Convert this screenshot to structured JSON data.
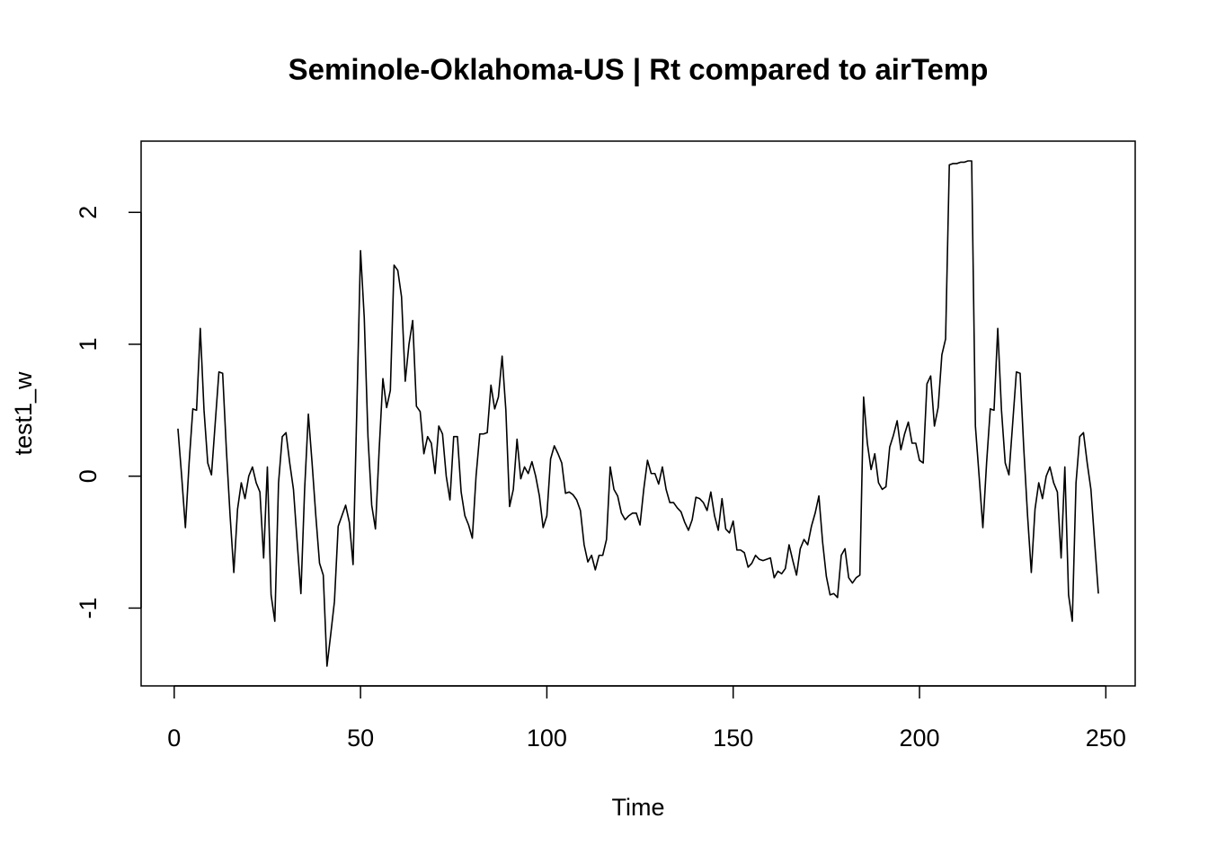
{
  "chart_data": {
    "type": "line",
    "title": "Seminole-Oklahoma-US | Rt compared to airTemp",
    "xlabel": "Time",
    "ylabel": "test1_w",
    "x": [
      1,
      2,
      3,
      4,
      5,
      6,
      7,
      8,
      9,
      10,
      11,
      12,
      13,
      14,
      15,
      16,
      17,
      18,
      19,
      20,
      21,
      22,
      23,
      24,
      25,
      26,
      27,
      28,
      29,
      30,
      31,
      32,
      33,
      34,
      35,
      36,
      37,
      38,
      39,
      40,
      41,
      42,
      43,
      44,
      45,
      46,
      47,
      48,
      49,
      50,
      51,
      52,
      53,
      54,
      55,
      56,
      57,
      58,
      59,
      60,
      61,
      62,
      63,
      64,
      65,
      66,
      67,
      68,
      69,
      70,
      71,
      72,
      73,
      74,
      75,
      76,
      77,
      78,
      79,
      80,
      81,
      82,
      83,
      84,
      85,
      86,
      87,
      88,
      89,
      90,
      91,
      92,
      93,
      94,
      95,
      96,
      97,
      98,
      99,
      100,
      101,
      102,
      103,
      104,
      105,
      106,
      107,
      108,
      109,
      110,
      111,
      112,
      113,
      114,
      115,
      116,
      117,
      118,
      119,
      120,
      121,
      122,
      123,
      124,
      125,
      126,
      127,
      128,
      129,
      130,
      131,
      132,
      133,
      134,
      135,
      136,
      137,
      138,
      139,
      140,
      141,
      142,
      143,
      144,
      145,
      146,
      147,
      148,
      149,
      150,
      151,
      152,
      153,
      154,
      155,
      156,
      157,
      158,
      159,
      160,
      161,
      162,
      163,
      164,
      165,
      166,
      167,
      168,
      169,
      170,
      171,
      172,
      173,
      174,
      175,
      176,
      177,
      178,
      179,
      180,
      181,
      182,
      183,
      184,
      185,
      186,
      187,
      188,
      189,
      190,
      191,
      192,
      193,
      194,
      195,
      196,
      197,
      198,
      199,
      200,
      201,
      202,
      203,
      204,
      205,
      206,
      207,
      208,
      209,
      210,
      211,
      212,
      213,
      214,
      215,
      216,
      217,
      218,
      219,
      220,
      221,
      222,
      223,
      224,
      225,
      226,
      227,
      228,
      229,
      230,
      231,
      232,
      233,
      234,
      235,
      236,
      237,
      238,
      239,
      240,
      241,
      242,
      243,
      244,
      245,
      246,
      247,
      248
    ],
    "values": [
      0.36,
      0.0,
      -0.39,
      0.1,
      0.51,
      0.5,
      1.12,
      0.5,
      0.1,
      0.01,
      0.4,
      0.79,
      0.78,
      0.2,
      -0.3,
      -0.73,
      -0.25,
      -0.05,
      -0.17,
      0.0,
      0.07,
      -0.05,
      -0.12,
      -0.62,
      0.07,
      -0.9,
      -1.1,
      -0.05,
      0.3,
      0.33,
      0.1,
      -0.1,
      -0.5,
      -0.89,
      -0.1,
      0.47,
      0.1,
      -0.3,
      -0.66,
      -0.75,
      -1.44,
      -1.2,
      -0.95,
      -0.38,
      -0.3,
      -0.22,
      -0.35,
      -0.67,
      0.5,
      1.71,
      1.2,
      0.3,
      -0.22,
      -0.4,
      0.2,
      0.74,
      0.52,
      0.65,
      1.6,
      1.56,
      1.36,
      0.72,
      1.0,
      1.18,
      0.53,
      0.49,
      0.17,
      0.3,
      0.25,
      0.02,
      0.38,
      0.32,
      0.0,
      -0.18,
      0.3,
      0.3,
      -0.12,
      -0.3,
      -0.37,
      -0.47,
      0.0,
      0.32,
      0.32,
      0.33,
      0.69,
      0.51,
      0.6,
      0.91,
      0.5,
      -0.23,
      -0.1,
      0.28,
      -0.02,
      0.07,
      0.02,
      0.11,
      0.0,
      -0.15,
      -0.39,
      -0.3,
      0.13,
      0.23,
      0.17,
      0.1,
      -0.13,
      -0.12,
      -0.14,
      -0.18,
      -0.26,
      -0.52,
      -0.65,
      -0.6,
      -0.71,
      -0.6,
      -0.6,
      -0.48,
      0.07,
      -0.1,
      -0.15,
      -0.28,
      -0.33,
      -0.3,
      -0.28,
      -0.28,
      -0.37,
      -0.1,
      0.12,
      0.02,
      0.02,
      -0.06,
      0.07,
      -0.1,
      -0.2,
      -0.2,
      -0.24,
      -0.27,
      -0.35,
      -0.41,
      -0.33,
      -0.16,
      -0.17,
      -0.2,
      -0.26,
      -0.12,
      -0.3,
      -0.41,
      -0.17,
      -0.4,
      -0.43,
      -0.34,
      -0.56,
      -0.56,
      -0.58,
      -0.69,
      -0.66,
      -0.6,
      -0.63,
      -0.64,
      -0.63,
      -0.62,
      -0.77,
      -0.72,
      -0.74,
      -0.7,
      -0.52,
      -0.64,
      -0.75,
      -0.55,
      -0.48,
      -0.52,
      -0.38,
      -0.28,
      -0.15,
      -0.5,
      -0.76,
      -0.9,
      -0.89,
      -0.92,
      -0.6,
      -0.55,
      -0.77,
      -0.81,
      -0.77,
      -0.75,
      0.6,
      0.25,
      0.05,
      0.17,
      -0.05,
      -0.1,
      -0.08,
      0.22,
      0.31,
      0.42,
      0.2,
      0.32,
      0.41,
      0.25,
      0.25,
      0.12,
      0.1,
      0.7,
      0.76,
      0.38,
      0.52,
      0.92,
      1.04,
      2.36,
      2.37,
      2.37,
      2.38,
      2.38,
      2.39,
      2.39,
      0.38,
      0.0,
      -0.39,
      0.1,
      0.51,
      0.5,
      1.12,
      0.5,
      0.1,
      0.01,
      0.4,
      0.79,
      0.78,
      0.2,
      -0.3,
      -0.73,
      -0.25,
      -0.05,
      -0.17,
      0.0,
      0.07,
      -0.05,
      -0.12,
      -0.62,
      0.07,
      -0.9,
      -1.1,
      -0.05,
      0.3,
      0.33,
      0.1,
      -0.1,
      -0.5,
      -0.89
    ],
    "color": "#000000",
    "xlim": [
      -8.88,
      257.88
    ],
    "xticks": [
      0,
      50,
      100,
      150,
      200,
      250
    ],
    "ylim": [
      -1.59,
      2.54
    ],
    "yticks": [
      -1,
      0,
      1,
      2
    ]
  }
}
